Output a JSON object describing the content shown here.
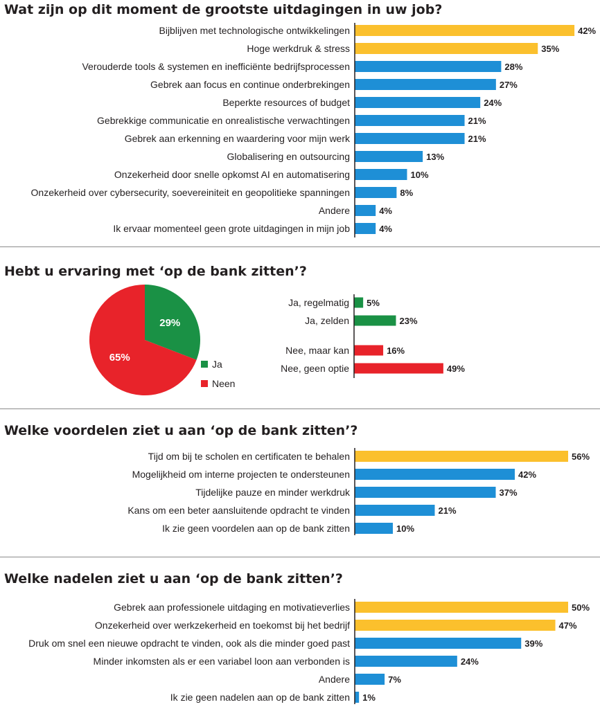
{
  "colors": {
    "yellow": "#FBC02D",
    "blue": "#1E8FD6",
    "green": "#1A9145",
    "red": "#E8232A",
    "axis": "#231f20",
    "text": "#231f20"
  },
  "chart_data": [
    {
      "type": "bar",
      "orientation": "horizontal",
      "title": "Wat zijn op dit moment de grootste uitdagingen in uw job?",
      "categories": [
        "Bijblijven met technologische ontwikkelingen",
        "Hoge werkdruk & stress",
        "Verouderde tools & systemen en inefficiënte bedrijfsprocessen",
        "Gebrek aan focus en continue onderbrekingen",
        "Beperkte resources of budget",
        "Gebrekkige communicatie en onrealistische verwachtingen",
        "Gebrek aan erkenning en waardering voor mijn werk",
        "Globalisering en outsourcing",
        "Onzekerheid door snelle opkomst AI en automatisering",
        "Onzekerheid over cybersecurity, soevereiniteit en geopolitieke spanningen",
        "Andere",
        "Ik ervaar momenteel geen grote uitdagingen in mijn job"
      ],
      "values": [
        42,
        35,
        28,
        27,
        24,
        21,
        21,
        13,
        10,
        8,
        4,
        4
      ],
      "value_labels": [
        "42%",
        "35%",
        "28%",
        "27%",
        "24%",
        "21%",
        "21%",
        "13%",
        "10%",
        "8%",
        "4%",
        "4%"
      ],
      "bar_colors": [
        "yellow",
        "yellow",
        "blue",
        "blue",
        "blue",
        "blue",
        "blue",
        "blue",
        "blue",
        "blue",
        "blue",
        "blue"
      ]
    },
    {
      "type": "pie",
      "title": "Hebt u ervaring met ‘op de bank zitten’?",
      "labels": [
        "Ja",
        "Neen"
      ],
      "values": [
        29,
        65
      ],
      "value_labels": [
        "29%",
        "65%"
      ],
      "slice_colors": [
        "green",
        "red"
      ],
      "legend": "right"
    },
    {
      "type": "bar",
      "orientation": "horizontal",
      "categories": [
        "Ja, regelmatig",
        "Ja, zelden",
        "Nee, maar kan",
        "Nee, geen optie"
      ],
      "values": [
        5,
        23,
        16,
        49
      ],
      "value_labels": [
        "5%",
        "23%",
        "16%",
        "49%"
      ],
      "bar_colors": [
        "green",
        "green",
        "red",
        "red"
      ]
    },
    {
      "type": "bar",
      "orientation": "horizontal",
      "title": "Welke voordelen ziet u aan ‘op de bank zitten’?",
      "categories": [
        "Tijd om bij te scholen en certificaten te behalen",
        "Mogelijkheid om interne projecten te ondersteunen",
        "Tijdelijke pauze en minder werkdruk",
        "Kans om een beter aansluitende opdracht te vinden",
        "Ik zie geen voordelen aan op de bank zitten"
      ],
      "values": [
        56,
        42,
        37,
        21,
        10
      ],
      "value_labels": [
        "56%",
        "42%",
        "37%",
        "21%",
        "10%"
      ],
      "bar_colors": [
        "yellow",
        "blue",
        "blue",
        "blue",
        "blue"
      ]
    },
    {
      "type": "bar",
      "orientation": "horizontal",
      "title": "Welke nadelen ziet u aan ‘op de bank zitten’?",
      "categories": [
        "Gebrek aan professionele uitdaging en motivatieverlies",
        "Onzekerheid over werkzekerheid en toekomst bij het bedrijf",
        "Druk om snel een nieuwe opdracht te vinden, ook als die minder goed past",
        "Minder inkomsten als er een variabel loon aan verbonden is",
        "Andere",
        "Ik zie geen nadelen aan op de bank zitten"
      ],
      "values": [
        50,
        47,
        39,
        24,
        7,
        1
      ],
      "value_labels": [
        "50%",
        "47%",
        "39%",
        "24%",
        "7%",
        "1%"
      ],
      "bar_colors": [
        "yellow",
        "yellow",
        "blue",
        "blue",
        "blue",
        "blue"
      ]
    }
  ]
}
